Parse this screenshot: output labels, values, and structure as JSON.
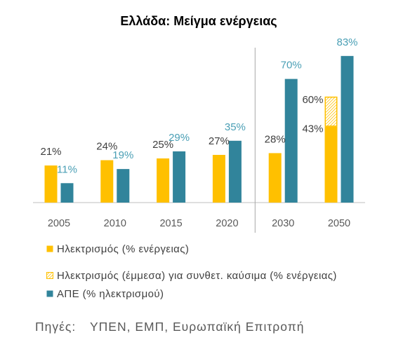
{
  "chart_data": {
    "type": "bar",
    "title": "Ελλάδα: Μείγμα ενέργειας",
    "categories": [
      "2005",
      "2010",
      "2015",
      "2020",
      "2030",
      "2050"
    ],
    "ylim": [
      0,
      100
    ],
    "grid": false,
    "legend_position": "bottom-left",
    "series": [
      {
        "name": "Ηλεκτρισμός (% ενέργειας)",
        "values": [
          21,
          24,
          25,
          27,
          28,
          43
        ],
        "labels": [
          "21%",
          "24%",
          "25%",
          "27%",
          "28%",
          "43%"
        ],
        "color": "#FFC000",
        "label_color": "#404040",
        "hatched": false
      },
      {
        "name": "Ηλεκτρισμός (έμμεσα) για συνθετ. καύσιμα (% ενέργειας)",
        "values": [
          null,
          null,
          null,
          null,
          null,
          60
        ],
        "labels": [
          null,
          null,
          null,
          null,
          null,
          "60%"
        ],
        "color": "#FFC000",
        "label_color": "#404040",
        "hatched": true,
        "stacked_on_series": 0
      },
      {
        "name": "ΑΠΕ (% ηλεκτρισμού)",
        "values": [
          11,
          19,
          29,
          35,
          70,
          83
        ],
        "labels": [
          "11%",
          "19%",
          "29%",
          "35%",
          "70%",
          "83%"
        ],
        "color": "#31849B",
        "label_color": "#4A9FB5",
        "hatched": false
      }
    ]
  },
  "source": {
    "label": "Πηγές:",
    "text": "ΥΠΕΝ, ΕΜΠ, Ευρωπαϊκή Επιτροπή"
  }
}
